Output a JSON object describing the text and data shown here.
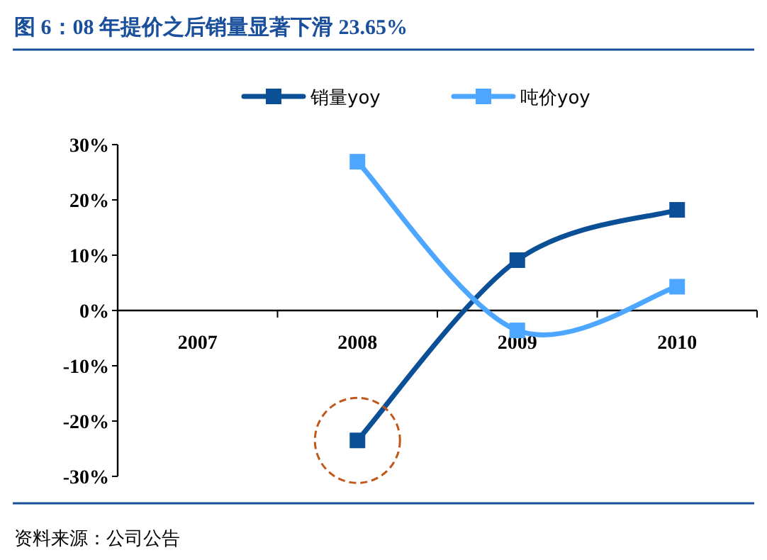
{
  "chart_data": {
    "type": "line",
    "title": "图 6：08 年提价之后销量显著下滑 23.65%",
    "categories": [
      "2007",
      "2008",
      "2009",
      "2010"
    ],
    "series": [
      {
        "name": "销量yoy",
        "color": "#0b4f96",
        "values": [
          null,
          -23.5,
          9.1,
          18.2
        ]
      },
      {
        "name": "吨价yoy",
        "color": "#4da6ff",
        "values": [
          null,
          26.9,
          -3.6,
          4.3
        ]
      }
    ],
    "ylim": [
      -30,
      30
    ],
    "yticks": [
      {
        "value": -30,
        "label": "-30%"
      },
      {
        "value": -20,
        "label": "-20%"
      },
      {
        "value": -10,
        "label": "-10%"
      },
      {
        "value": 0,
        "label": "0%"
      },
      {
        "value": 10,
        "label": "10%"
      },
      {
        "value": 20,
        "label": "20%"
      },
      {
        "value": 30,
        "label": "30%"
      }
    ],
    "marker": "square",
    "line_style": "solid",
    "legend": "top",
    "grid": false,
    "annotations": [
      "资料来源：公司公告"
    ]
  }
}
